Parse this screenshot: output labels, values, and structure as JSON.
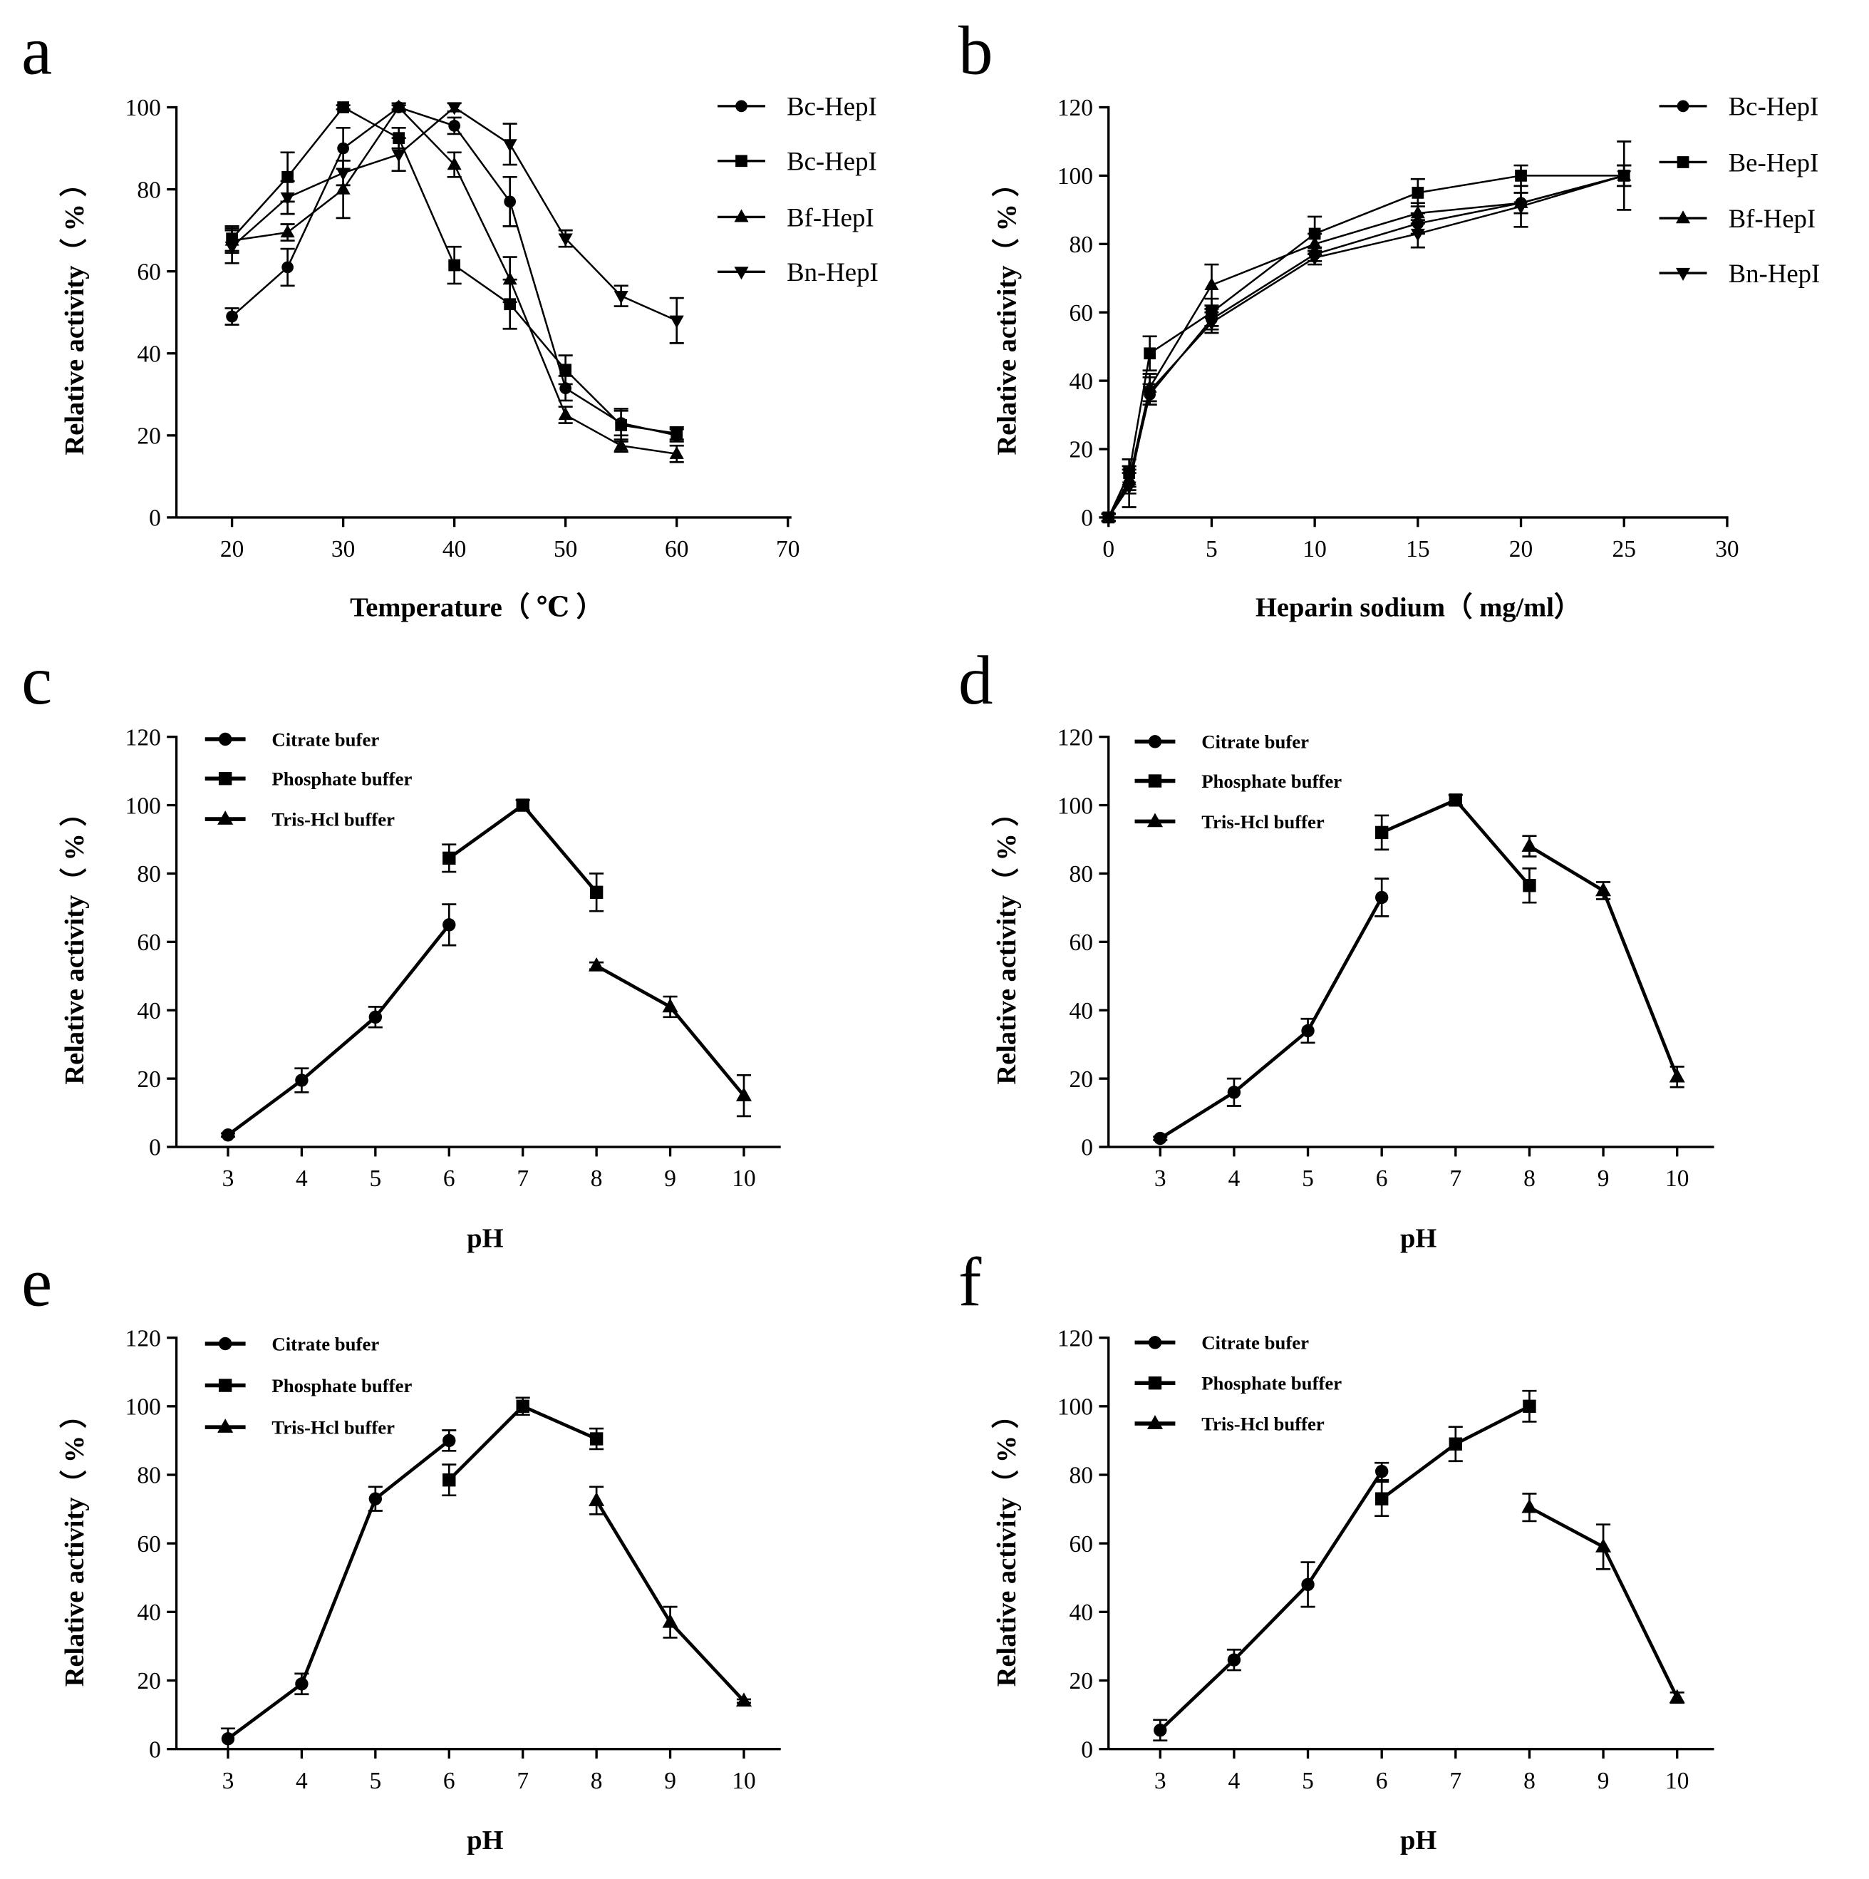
{
  "figure": {
    "background": "#ffffff",
    "ink": "#000000"
  },
  "chart_data": [
    {
      "panel": "a",
      "type": "line",
      "title": "",
      "xlabel": "Temperature（ ℃ ）",
      "ylabel": "Relative activity（ % ）",
      "xlim": [
        15,
        70
      ],
      "ylim": [
        0,
        100
      ],
      "xticks": [
        20,
        30,
        40,
        50,
        60,
        70
      ],
      "yticks": [
        0,
        20,
        40,
        60,
        80,
        100
      ],
      "legend": "top-right",
      "series": [
        {
          "name": "Bc-HepI",
          "marker": "circle",
          "x": [
            20,
            25,
            30,
            35,
            40,
            45,
            50,
            55,
            60
          ],
          "values": [
            49,
            61,
            90,
            100,
            95.5,
            77,
            31.5,
            23,
            20
          ],
          "err": [
            2,
            4.5,
            5,
            0.5,
            2,
            6,
            3,
            3,
            1.5
          ]
        },
        {
          "name": "Bc-HepI",
          "marker": "square",
          "x": [
            20,
            25,
            30,
            35,
            40,
            45,
            50,
            55,
            60
          ],
          "values": [
            68,
            83,
            100,
            92.5,
            61.5,
            52,
            36,
            22.5,
            20.5
          ],
          "err": [
            3,
            6,
            0.5,
            2.5,
            4.5,
            6,
            3.5,
            4,
            1.5
          ]
        },
        {
          "name": "Bf-HepI",
          "marker": "triangle",
          "x": [
            20,
            25,
            30,
            35,
            40,
            45,
            50,
            55,
            60
          ],
          "values": [
            67.5,
            69.5,
            80,
            100,
            86,
            58,
            25,
            17.5,
            15.5
          ],
          "err": [
            3,
            2,
            7,
            1,
            3,
            5.5,
            2,
            1.5,
            2
          ]
        },
        {
          "name": "Bn-HepI",
          "marker": "triangle-down",
          "x": [
            20,
            25,
            30,
            35,
            40,
            45,
            50,
            55,
            60
          ],
          "values": [
            66,
            78,
            84,
            88.5,
            100,
            91,
            68,
            54,
            48
          ],
          "err": [
            4,
            4,
            3,
            4,
            1,
            5,
            2,
            2.5,
            5.5
          ]
        }
      ]
    },
    {
      "panel": "b",
      "type": "line",
      "title": "",
      "xlabel": "Heparin sodium（ mg/ml）",
      "ylabel": "Relative activity（ % ）",
      "xlim": [
        0,
        30
      ],
      "ylim": [
        0,
        120
      ],
      "xticks": [
        0,
        5,
        10,
        15,
        20,
        25,
        30
      ],
      "yticks": [
        0,
        20,
        40,
        60,
        80,
        100,
        120
      ],
      "legend": "top-right",
      "series": [
        {
          "name": "Bc-HepI",
          "marker": "circle",
          "x": [
            0,
            1,
            2,
            5,
            10,
            15,
            20,
            25
          ],
          "values": [
            0,
            10,
            36,
            58,
            77,
            86,
            92,
            100
          ],
          "err": [
            1,
            3,
            3,
            3,
            2,
            3,
            3,
            3
          ]
        },
        {
          "name": "Be-HepI",
          "marker": "square",
          "x": [
            0,
            1,
            2,
            5,
            10,
            15,
            20,
            25
          ],
          "values": [
            0,
            13,
            48,
            60,
            83,
            95,
            100,
            100
          ],
          "err": [
            1,
            4,
            5,
            4,
            5,
            4,
            3,
            3
          ]
        },
        {
          "name": "Bf-HepI",
          "marker": "triangle",
          "x": [
            0,
            1,
            2,
            5,
            10,
            15,
            20,
            25
          ],
          "values": [
            0,
            11,
            38,
            68,
            80,
            89,
            92,
            100
          ],
          "err": [
            1,
            3,
            4,
            6,
            3,
            3,
            3,
            3
          ]
        },
        {
          "name": "Bn-HepI",
          "marker": "triangle-down",
          "x": [
            0,
            1,
            2,
            5,
            10,
            15,
            20,
            25
          ],
          "values": [
            0,
            9,
            37,
            57,
            76,
            83,
            91,
            100
          ],
          "err": [
            1,
            6,
            4,
            3,
            2,
            4,
            6,
            10
          ]
        }
      ]
    },
    {
      "panel": "c",
      "type": "line",
      "title": "",
      "xlabel": "pH",
      "ylabel": "Relative activity（ % ）",
      "xlim": [
        2.3,
        10.5
      ],
      "ylim": [
        0,
        120
      ],
      "xticks": [
        3,
        4,
        5,
        6,
        7,
        8,
        9,
        10
      ],
      "yticks": [
        0,
        20,
        40,
        60,
        80,
        100,
        120
      ],
      "legend": "top-left",
      "series": [
        {
          "name": "Citrate bufer",
          "marker": "circle",
          "x": [
            3,
            4,
            5,
            6
          ],
          "values": [
            3.5,
            19.5,
            38,
            65
          ],
          "err": [
            0.5,
            3.5,
            3,
            6
          ]
        },
        {
          "name": "Phosphate buffer",
          "marker": "square",
          "x": [
            6,
            7,
            8
          ],
          "values": [
            84.5,
            100,
            74.5
          ],
          "err": [
            4,
            1.5,
            5.5
          ]
        },
        {
          "name": "Tris-Hcl buffer",
          "marker": "triangle",
          "x": [
            8,
            9,
            10
          ],
          "values": [
            53,
            41,
            15
          ],
          "err": [
            1,
            3,
            6
          ]
        }
      ]
    },
    {
      "panel": "d",
      "type": "line",
      "title": "",
      "xlabel": "pH",
      "ylabel": "Relative activity（ % ）",
      "xlim": [
        2.3,
        10.5
      ],
      "ylim": [
        0,
        120
      ],
      "xticks": [
        3,
        4,
        5,
        6,
        7,
        8,
        9,
        10
      ],
      "yticks": [
        0,
        20,
        40,
        60,
        80,
        100,
        120
      ],
      "legend": "top-left",
      "series": [
        {
          "name": "Citrate bufer",
          "marker": "circle",
          "x": [
            3,
            4,
            5,
            6
          ],
          "values": [
            2.5,
            16,
            34,
            73
          ],
          "err": [
            0.5,
            4,
            3.5,
            5.5
          ]
        },
        {
          "name": "Phosphate buffer",
          "marker": "square",
          "x": [
            6,
            7,
            8
          ],
          "values": [
            92,
            101.5,
            76.5
          ],
          "err": [
            5,
            1.5,
            5
          ]
        },
        {
          "name": "Tris-Hcl buffer",
          "marker": "triangle",
          "x": [
            8,
            9,
            10
          ],
          "values": [
            88,
            75,
            20.5
          ],
          "err": [
            3,
            2.5,
            3
          ]
        }
      ]
    },
    {
      "panel": "e",
      "type": "line",
      "title": "",
      "xlabel": "pH",
      "ylabel": "Relative activity（ % ）",
      "xlim": [
        2.3,
        10.5
      ],
      "ylim": [
        0,
        120
      ],
      "xticks": [
        3,
        4,
        5,
        6,
        7,
        8,
        9,
        10
      ],
      "yticks": [
        0,
        20,
        40,
        60,
        80,
        100,
        120
      ],
      "legend": "top-left",
      "series": [
        {
          "name": "Citrate bufer",
          "marker": "circle",
          "x": [
            3,
            4,
            5,
            6
          ],
          "values": [
            3,
            19,
            73,
            90
          ],
          "err": [
            3,
            3,
            3.5,
            3
          ]
        },
        {
          "name": "Phosphate buffer",
          "marker": "square",
          "x": [
            6,
            7,
            8
          ],
          "values": [
            78.5,
            100,
            90.5
          ],
          "err": [
            4.5,
            2.5,
            3
          ]
        },
        {
          "name": "Tris-Hcl buffer",
          "marker": "triangle",
          "x": [
            8,
            9,
            10
          ],
          "values": [
            72.5,
            37,
            14
          ],
          "err": [
            4,
            4.5,
            0.5
          ]
        }
      ]
    },
    {
      "panel": "f",
      "type": "line",
      "title": "",
      "xlabel": "pH",
      "ylabel": "Relative activity（ % ）",
      "xlim": [
        2.3,
        10.5
      ],
      "ylim": [
        0,
        120
      ],
      "xticks": [
        3,
        4,
        5,
        6,
        7,
        8,
        9,
        10
      ],
      "yticks": [
        0,
        20,
        40,
        60,
        80,
        100,
        120
      ],
      "legend": "top-left",
      "series": [
        {
          "name": "Citrate bufer",
          "marker": "circle",
          "x": [
            3,
            4,
            5,
            6
          ],
          "values": [
            5.5,
            26,
            48,
            81
          ],
          "err": [
            3,
            3,
            6.5,
            2.5
          ]
        },
        {
          "name": "Phosphate buffer",
          "marker": "square",
          "x": [
            6,
            7,
            8
          ],
          "values": [
            73,
            89,
            100
          ],
          "err": [
            5,
            5,
            4.5
          ]
        },
        {
          "name": "Tris-Hcl buffer",
          "marker": "triangle",
          "x": [
            8,
            9,
            10
          ],
          "values": [
            70.5,
            59,
            15
          ],
          "err": [
            4,
            6.5,
            1.5
          ]
        }
      ]
    }
  ]
}
